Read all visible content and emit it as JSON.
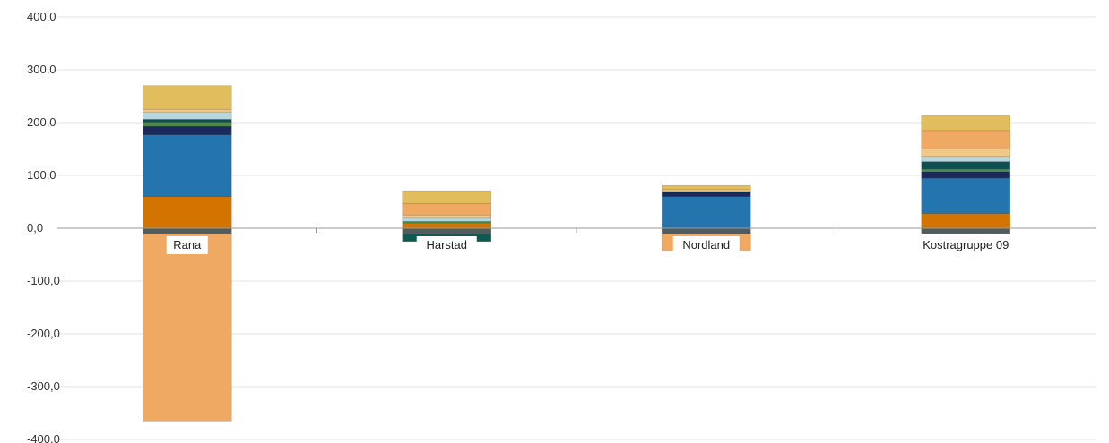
{
  "chart_data": {
    "type": "bar",
    "stacked": true,
    "title": "",
    "xlabel": "",
    "ylabel": "",
    "ylim": [
      -400,
      400
    ],
    "grid": true,
    "ytick_labels": [
      "400,0",
      "300,0",
      "200,0",
      "100,0",
      "0,0",
      "-100,0",
      "-200,0",
      "-300,0",
      "-400,0"
    ],
    "ytick_values": [
      400,
      300,
      200,
      100,
      0,
      -100,
      -200,
      -300,
      -400
    ],
    "categories": [
      "Rana",
      "Harstad",
      "Nordland",
      "Kostragruppe 09"
    ],
    "series": [
      {
        "color": "#d37400",
        "values": [
          60,
          10,
          0,
          28
        ]
      },
      {
        "color": "#2474ad",
        "values": [
          117,
          0,
          60,
          67
        ]
      },
      {
        "color": "#1b2a5a",
        "values": [
          16,
          0,
          8,
          12
        ]
      },
      {
        "color": "#4f8a4a",
        "values": [
          8,
          3,
          0,
          5
        ]
      },
      {
        "color": "#0e4f52",
        "values": [
          5,
          0,
          0,
          14
        ]
      },
      {
        "color": "#b7d6dd",
        "values": [
          14,
          6,
          3,
          10
        ]
      },
      {
        "color": "#f2c886",
        "values": [
          5,
          6,
          3,
          14
        ]
      },
      {
        "color": "#f0a962",
        "values": [
          0,
          22,
          0,
          35
        ]
      },
      {
        "color": "#e2bd5e",
        "values": [
          45,
          24,
          7,
          28
        ]
      },
      {
        "color": "#515c5c",
        "values": [
          -10,
          -12,
          -11,
          -10
        ]
      },
      {
        "color": "#0e5a52",
        "values": [
          0,
          -13,
          0,
          0
        ]
      },
      {
        "color": "#f0a962",
        "values": [
          -355,
          0,
          -32,
          0
        ]
      }
    ]
  }
}
